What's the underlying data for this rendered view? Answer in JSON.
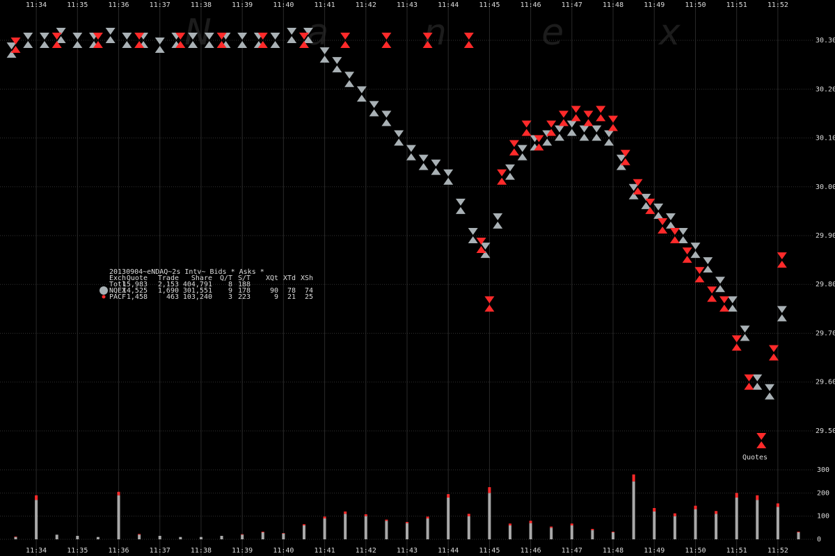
{
  "chart_data": [
    {
      "type": "scatter",
      "watermark": "N a n e x",
      "xlim": [
        693.12,
        712.88
      ],
      "xticks": [
        {
          "value": 694,
          "label": "11:34"
        },
        {
          "value": 695,
          "label": "11:35"
        },
        {
          "value": 696,
          "label": "11:36"
        },
        {
          "value": 697,
          "label": "11:37"
        },
        {
          "value": 698,
          "label": "11:38"
        },
        {
          "value": 699,
          "label": "11:39"
        },
        {
          "value": 700,
          "label": "11:40"
        },
        {
          "value": 701,
          "label": "11:41"
        },
        {
          "value": 702,
          "label": "11:42"
        },
        {
          "value": 703,
          "label": "11:43"
        },
        {
          "value": 704,
          "label": "11:44"
        },
        {
          "value": 705,
          "label": "11:45"
        },
        {
          "value": 706,
          "label": "11:46"
        },
        {
          "value": 707,
          "label": "11:47"
        },
        {
          "value": 708,
          "label": "11:48"
        },
        {
          "value": 709,
          "label": "11:49"
        },
        {
          "value": 710,
          "label": "11:50"
        },
        {
          "value": 711,
          "label": "11:51"
        },
        {
          "value": 712,
          "label": "11:52"
        }
      ],
      "ylim": [
        29.443,
        30.357
      ],
      "yticks": [
        {
          "value": 29.5,
          "label": "29.50"
        },
        {
          "value": 29.6,
          "label": "29.60"
        },
        {
          "value": 29.7,
          "label": "29.70"
        },
        {
          "value": 29.8,
          "label": "29.80"
        },
        {
          "value": 29.9,
          "label": "29.90"
        },
        {
          "value": 30.0,
          "label": "30.00"
        },
        {
          "value": 30.1,
          "label": "30.10"
        },
        {
          "value": 30.2,
          "label": "30.20"
        },
        {
          "value": 30.3,
          "label": "30.30"
        }
      ],
      "grid": true,
      "table": {
        "title": "20130904~eNDAQ~2s Intv~ Bids * Asks *",
        "columns": [
          "Exch",
          "Quote",
          "Trade",
          "Share",
          "Q/T",
          "S/T",
          "XQt",
          "XTd",
          "XSh"
        ],
        "total": [
          "Totl",
          "15,983",
          "2,153",
          "404,791",
          "8",
          "188"
        ]
      },
      "series": [
        {
          "name": "NQEX",
          "color": "#a9b1b5",
          "stats": [
            "14,525",
            "1,690",
            "301,551",
            "9",
            "178",
            "90",
            "78",
            "74"
          ],
          "x": [
            693.4,
            693.8,
            694.2,
            694.6,
            695,
            695.4,
            695.8,
            696.2,
            696.6,
            697,
            697.4,
            697.8,
            698.2,
            698.6,
            699,
            699.4,
            699.8,
            700.2,
            700.6,
            701,
            701.3,
            701.6,
            701.9,
            702.2,
            702.5,
            702.8,
            703.1,
            703.4,
            703.7,
            704,
            704.3,
            704.6,
            704.9,
            705.2,
            705.5,
            705.8,
            706.1,
            706.4,
            706.7,
            707,
            707.3,
            707.6,
            707.9,
            708.2,
            708.5,
            708.8,
            709.1,
            709.4,
            709.7,
            710,
            710.3,
            710.6,
            710.9,
            711.2,
            711.5,
            711.8,
            712.1
          ],
          "values": [
            30.28,
            30.3,
            30.3,
            30.31,
            30.3,
            30.3,
            30.31,
            30.3,
            30.3,
            30.29,
            30.3,
            30.3,
            30.3,
            30.3,
            30.3,
            30.3,
            30.3,
            30.31,
            30.31,
            30.27,
            30.25,
            30.22,
            30.19,
            30.16,
            30.14,
            30.1,
            30.07,
            30.05,
            30.04,
            30.02,
            29.96,
            29.9,
            29.87,
            29.93,
            30.03,
            30.07,
            30.09,
            30.1,
            30.11,
            30.12,
            30.11,
            30.11,
            30.1,
            30.05,
            29.99,
            29.97,
            29.95,
            29.93,
            29.9,
            29.87,
            29.84,
            29.8,
            29.76,
            29.7,
            29.6,
            29.58,
            29.74
          ]
        },
        {
          "name": "PACF",
          "color": "#ff2a2a",
          "stats": [
            "1,458",
            "463",
            "103,240",
            "3",
            "223",
            "9",
            "21",
            "25"
          ],
          "x": [
            693.5,
            694.5,
            695.5,
            696.5,
            697.5,
            698.5,
            699.5,
            700.5,
            701.5,
            702.5,
            703.5,
            704.5,
            704.8,
            705,
            705.3,
            705.6,
            705.9,
            706.2,
            706.5,
            706.8,
            707.1,
            707.4,
            707.7,
            708,
            708.3,
            708.6,
            708.9,
            709.2,
            709.5,
            709.8,
            710.1,
            710.4,
            710.7,
            711,
            711.3,
            711.6,
            711.9,
            712.1
          ],
          "values": [
            30.29,
            30.3,
            30.3,
            30.3,
            30.3,
            30.3,
            30.3,
            30.3,
            30.3,
            30.3,
            30.3,
            30.3,
            29.88,
            29.76,
            30.02,
            30.08,
            30.12,
            30.09,
            30.12,
            30.14,
            30.15,
            30.14,
            30.15,
            30.13,
            30.06,
            30.0,
            29.96,
            29.92,
            29.9,
            29.86,
            29.82,
            29.78,
            29.76,
            29.68,
            29.6,
            29.48,
            29.66,
            29.85
          ]
        }
      ]
    },
    {
      "type": "bar",
      "label": "Quotes",
      "xlim": [
        693.12,
        712.88
      ],
      "xticks": [
        {
          "value": 694,
          "label": "11:34"
        },
        {
          "value": 695,
          "label": "11:35"
        },
        {
          "value": 696,
          "label": "11:36"
        },
        {
          "value": 697,
          "label": "11:37"
        },
        {
          "value": 698,
          "label": "11:38"
        },
        {
          "value": 699,
          "label": "11:39"
        },
        {
          "value": 700,
          "label": "11:40"
        },
        {
          "value": 701,
          "label": "11:41"
        },
        {
          "value": 702,
          "label": "11:42"
        },
        {
          "value": 703,
          "label": "11:43"
        },
        {
          "value": 704,
          "label": "11:44"
        },
        {
          "value": 705,
          "label": "11:45"
        },
        {
          "value": 706,
          "label": "11:46"
        },
        {
          "value": 707,
          "label": "11:47"
        },
        {
          "value": 708,
          "label": "11:48"
        },
        {
          "value": 709,
          "label": "11:49"
        },
        {
          "value": 710,
          "label": "11:50"
        },
        {
          "value": 711,
          "label": "11:51"
        },
        {
          "value": 712,
          "label": "11:52"
        }
      ],
      "ylim": [
        0,
        330
      ],
      "yticks": [
        0,
        100,
        200,
        300
      ],
      "x": [
        693.5,
        694,
        694.5,
        695,
        695.5,
        696,
        696.5,
        697,
        697.5,
        698,
        698.5,
        699,
        699.5,
        700,
        700.5,
        701,
        701.5,
        702,
        702.5,
        703,
        703.5,
        704,
        704.5,
        705,
        705.5,
        706,
        706.5,
        707,
        707.5,
        708,
        708.5,
        709,
        709.5,
        710,
        710.5,
        711,
        711.5,
        712,
        712.5
      ],
      "series": [
        {
          "name": "NQEX",
          "color": "#a9a9a9",
          "values": [
            10,
            170,
            20,
            15,
            10,
            190,
            20,
            15,
            10,
            10,
            15,
            20,
            30,
            25,
            60,
            90,
            110,
            100,
            80,
            70,
            90,
            180,
            100,
            200,
            60,
            70,
            50,
            60,
            40,
            30,
            250,
            120,
            100,
            130,
            110,
            180,
            170,
            140,
            30
          ]
        },
        {
          "name": "PACF",
          "color": "#ff2a2a",
          "values": [
            2,
            20,
            0,
            0,
            0,
            15,
            3,
            0,
            0,
            0,
            0,
            2,
            3,
            2,
            5,
            8,
            10,
            8,
            5,
            5,
            8,
            15,
            10,
            25,
            8,
            10,
            5,
            8,
            5,
            3,
            30,
            15,
            12,
            15,
            12,
            20,
            20,
            15,
            3
          ]
        }
      ]
    }
  ]
}
